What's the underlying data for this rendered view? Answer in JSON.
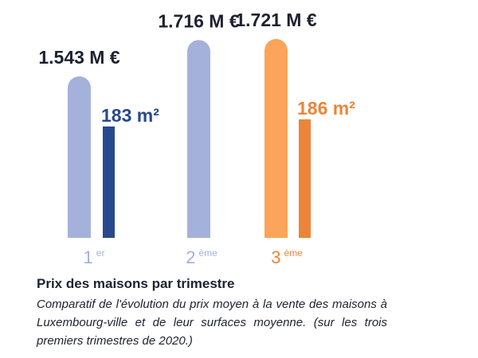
{
  "chart_data": {
    "type": "bar",
    "categories": [
      {
        "number": "1",
        "suffix": "er"
      },
      {
        "number": "2",
        "suffix": "ème"
      },
      {
        "number": "3",
        "suffix": "ème"
      }
    ],
    "series": [
      {
        "metric": "price",
        "values": [
          1.543,
          1.716,
          1.721
        ],
        "labels": [
          "1.543 M €",
          "1.716 M €",
          "1.721 M €"
        ],
        "colors": [
          "#a4b1db",
          "#a4b1db",
          "#fba45a"
        ]
      },
      {
        "metric": "area",
        "values": [
          183,
          null,
          186
        ],
        "labels": [
          "183 m²",
          "",
          "186 m²"
        ],
        "colors": [
          "#28498e",
          "#28498e",
          "#ec853a"
        ],
        "label_colors": [
          "#28498e",
          "#28498e",
          "#ec853a"
        ]
      }
    ],
    "quarter_label_colors": [
      "#a4b1db",
      "#a4b1db",
      "#ec853a"
    ],
    "title": "Prix des maisons par trimestre",
    "subtitle": "Comparatif de l'évolution du prix moyen à la vente des maisons à Luxembourg-ville et de leur surfaces moyenne. (sur les trois premiers trimestres de 2020.)"
  }
}
